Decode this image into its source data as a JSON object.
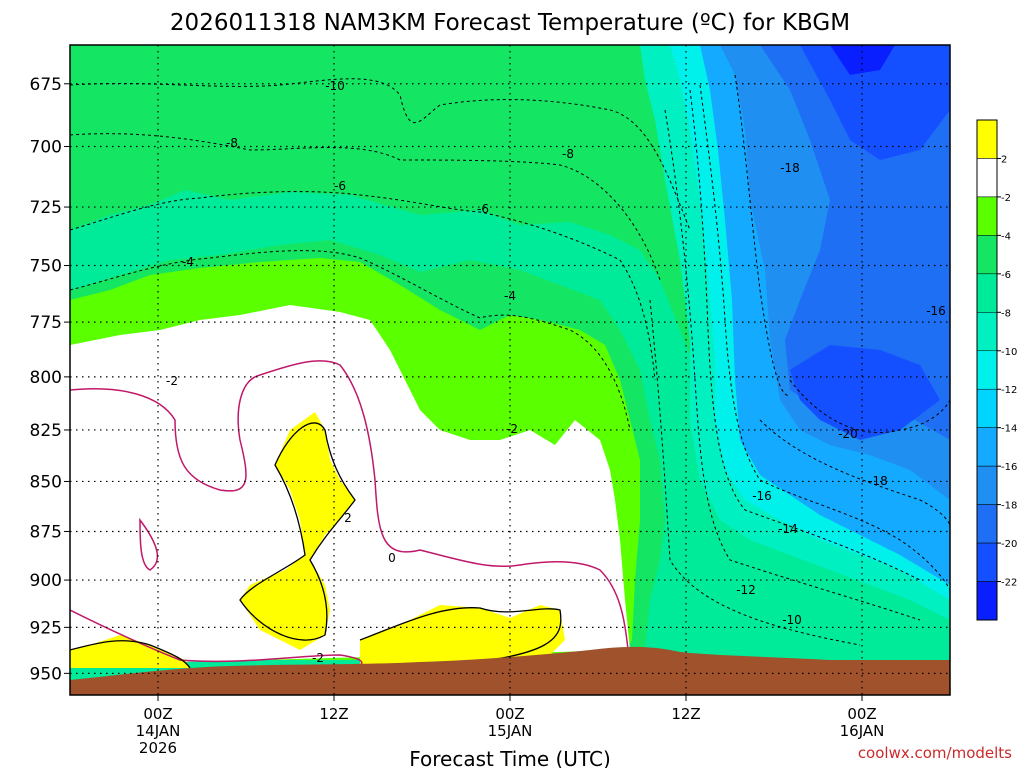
{
  "chart_data": {
    "type": "heatmap",
    "title": "2026011318 NAM3KM Forecast Temperature (ºC) for KBGM",
    "xlabel": "Forecast Time (UTC)",
    "ylabel": "",
    "y_scale": "pressure",
    "y_range_hpa": [
      660,
      962
    ],
    "y_ticks": [
      675,
      700,
      725,
      750,
      775,
      800,
      825,
      850,
      875,
      900,
      925,
      950
    ],
    "x_range_hours": [
      -6,
      54
    ],
    "x_ticks": [
      {
        "hour": 0,
        "lines": [
          "00Z",
          "14JAN",
          "2026"
        ]
      },
      {
        "hour": 12,
        "lines": [
          "12Z"
        ]
      },
      {
        "hour": 24,
        "lines": [
          "00Z",
          "15JAN"
        ]
      },
      {
        "hour": 36,
        "lines": [
          "12Z"
        ]
      },
      {
        "hour": 48,
        "lines": [
          "00Z",
          "16JAN"
        ]
      }
    ],
    "grid": true,
    "colorbar": {
      "placement": "right",
      "levels": [
        -24,
        -22,
        -20,
        -18,
        -16,
        -14,
        -12,
        -10,
        -8,
        -6,
        -4,
        -2,
        2,
        4
      ],
      "tick_labels": [
        "2",
        "-2",
        "-4",
        "-6",
        "-8",
        "-10",
        "-12",
        "-14",
        "-16",
        "-18",
        "-20",
        "-22"
      ],
      "colors": [
        "#0a1fff",
        "#1450ff",
        "#1e6ff4",
        "#1f8ff2",
        "#14aaff",
        "#00d4ff",
        "#00f0ec",
        "#00f0c2",
        "#00eb99",
        "#14e664",
        "#5aff00",
        "#ffffff",
        "#ffff00"
      ]
    },
    "contour_labels": [
      "-10",
      "-8",
      "-8",
      "-6",
      "-6",
      "-4",
      "-4",
      "-2",
      "-2",
      "-2",
      "0",
      "2",
      "-18",
      "-16",
      "-20",
      "-18",
      "-16",
      "-14",
      "-12",
      "-10"
    ],
    "terrain": {
      "color": "#a0522d"
    },
    "credit": "coolwx.com/modelts"
  }
}
